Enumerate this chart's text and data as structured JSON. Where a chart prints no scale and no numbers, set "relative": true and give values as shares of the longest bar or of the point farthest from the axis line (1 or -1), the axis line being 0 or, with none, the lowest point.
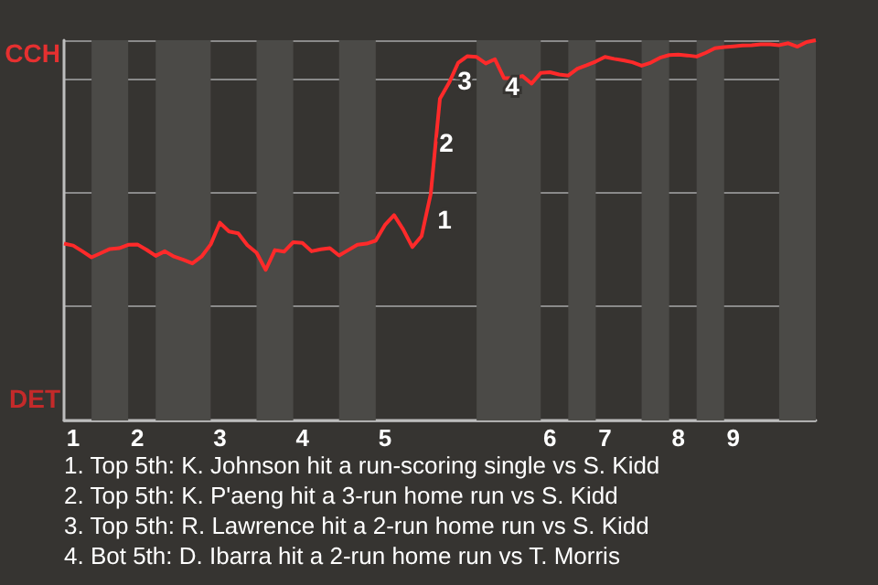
{
  "chart_data": {
    "type": "line",
    "grid": "y",
    "marker": "none",
    "line_style": "solid",
    "relative": true,
    "categories": [
      null,
      "1",
      null,
      null,
      null,
      null,
      null,
      null,
      "2",
      null,
      null,
      null,
      null,
      null,
      null,
      null,
      null,
      "3",
      null,
      null,
      null,
      null,
      null,
      null,
      null,
      null,
      "4",
      null,
      null,
      null,
      null,
      null,
      null,
      null,
      null,
      "5",
      null,
      null,
      null,
      null,
      null,
      null,
      null,
      null,
      null,
      null,
      null,
      null,
      null,
      null,
      null,
      null,
      null,
      "6",
      null,
      null,
      null,
      null,
      null,
      "7",
      null,
      null,
      null,
      null,
      null,
      null,
      null,
      "8",
      null,
      null,
      null,
      null,
      null,
      "9",
      null,
      null,
      null,
      null,
      null,
      null,
      null,
      null,
      null
    ],
    "series": [
      {
        "color": "#ff2a2a",
        "values": [
          0.465,
          0.46,
          0.445,
          0.429,
          0.44,
          0.451,
          0.453,
          0.462,
          0.463,
          0.449,
          0.433,
          0.445,
          0.431,
          0.423,
          0.413,
          0.431,
          0.463,
          0.52,
          0.497,
          0.492,
          0.461,
          0.441,
          0.396,
          0.448,
          0.444,
          0.469,
          0.467,
          0.445,
          0.45,
          0.453,
          0.434,
          0.448,
          0.462,
          0.465,
          0.473,
          0.514,
          0.54,
          0.502,
          0.456,
          0.485,
          0.596,
          0.846,
          0.888,
          0.941,
          0.958,
          0.956,
          0.939,
          0.95,
          0.9,
          0.9,
          0.906,
          0.886,
          0.914,
          0.916,
          0.91,
          0.907,
          0.925,
          0.934,
          0.944,
          0.956,
          0.951,
          0.947,
          0.942,
          0.933,
          0.941,
          0.954,
          0.961,
          0.962,
          0.96,
          0.957,
          0.967,
          0.979,
          0.982,
          0.984,
          0.986,
          0.987,
          0.989,
          0.989,
          0.987,
          0.992,
          0.983,
          0.995,
          1
        ]
      }
    ],
    "annotations": [
      "CCH",
      "DET",
      "1",
      "2",
      "3",
      "4",
      "1. Top 5th: K. Johnson hit a run-scoring single vs S. Kidd",
      "2. Top 5th: K. P'aeng hit a 3-run home run vs S. Kidd",
      "3. Top 5th: R. Lawrence hit a 2-run home run vs S. Kidd",
      "4. Bot 5th: D. Ibarra hit a 2-run home run vs T. Morris"
    ]
  }
}
